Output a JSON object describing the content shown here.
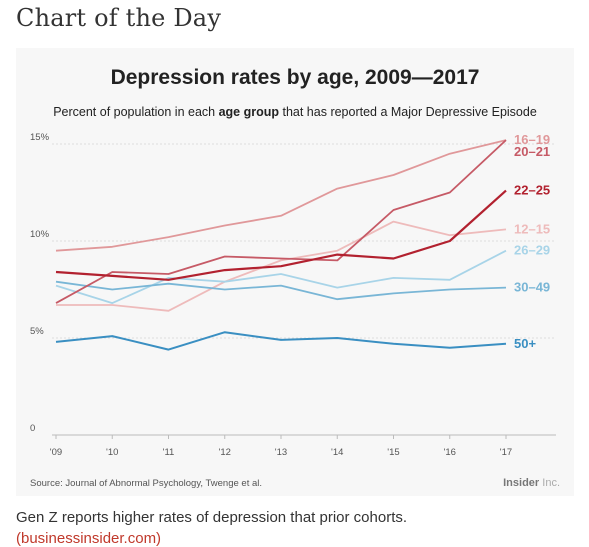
{
  "page": {
    "header": "Chart of the Day",
    "caption": "Gen Z reports higher rates of depression that prior cohorts.",
    "link": "(businessinsider.com)"
  },
  "card": {
    "source": "Source: Journal of Abnormal Psychology, Twenge et al.",
    "logo_bold": "Insider",
    "logo_light": "Inc."
  },
  "chart_data": {
    "type": "line",
    "title": "Depression rates by age, 2009—2017",
    "subtitle_pre": "Percent of population in each ",
    "subtitle_bold": "age group",
    "subtitle_post": " that has reported a Major Depressive Episode",
    "x": [
      2009,
      2010,
      2011,
      2012,
      2013,
      2014,
      2015,
      2016,
      2017
    ],
    "x_tick_labels": [
      "'09",
      "'10",
      "'11",
      "'12",
      "'13",
      "'14",
      "'15",
      "'16",
      "'17"
    ],
    "ylim": [
      0,
      15
    ],
    "y_ticks": [
      0,
      5,
      10,
      15
    ],
    "y_tick_labels": [
      "0",
      "5%",
      "10%",
      "15%"
    ],
    "grid": true,
    "series": [
      {
        "name": "16–19",
        "color": "#e0989a",
        "width": 1.8,
        "values": [
          9.5,
          9.7,
          10.2,
          10.8,
          11.3,
          12.7,
          13.4,
          14.5,
          15.2
        ]
      },
      {
        "name": "20–21",
        "color": "#c65a66",
        "width": 1.8,
        "values": [
          6.8,
          8.4,
          8.3,
          9.2,
          9.1,
          9.0,
          11.6,
          12.5,
          15.2
        ]
      },
      {
        "name": "22–25",
        "color": "#b2212f",
        "width": 2.2,
        "values": [
          8.4,
          8.2,
          8.0,
          8.5,
          8.7,
          9.3,
          9.1,
          10.0,
          12.6
        ]
      },
      {
        "name": "12–15",
        "color": "#eebbbb",
        "width": 1.8,
        "values": [
          6.7,
          6.7,
          6.4,
          7.9,
          9.0,
          9.5,
          11.0,
          10.3,
          10.6
        ]
      },
      {
        "name": "26–29",
        "color": "#a8d4e8",
        "width": 1.8,
        "values": [
          7.7,
          6.8,
          8.1,
          7.9,
          8.3,
          7.6,
          8.1,
          8.0,
          9.5
        ]
      },
      {
        "name": "30–49",
        "color": "#79b6d6",
        "width": 1.8,
        "values": [
          7.9,
          7.5,
          7.8,
          7.5,
          7.7,
          7.0,
          7.3,
          7.5,
          7.6
        ]
      },
      {
        "name": "50+",
        "color": "#3a8fc2",
        "width": 2.0,
        "values": [
          4.8,
          5.1,
          4.4,
          5.3,
          4.9,
          5.0,
          4.7,
          4.5,
          4.7
        ]
      }
    ]
  }
}
